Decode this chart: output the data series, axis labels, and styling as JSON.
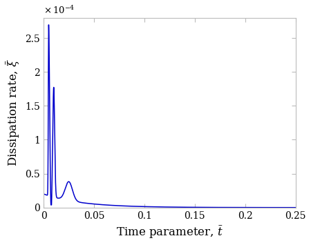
{
  "xlim": [
    0,
    0.25
  ],
  "ylim": [
    0,
    0.00028
  ],
  "xlabel": "Time parameter, $\\bar{t}$",
  "ylabel": "Dissipation rate, $\\bar{\\xi}$",
  "line_color": "#0000cc",
  "line_width": 1.1,
  "xlabel_fontsize": 12,
  "ylabel_fontsize": 12,
  "tick_fontsize": 10,
  "background_color": "#ffffff",
  "ytick_labels": [
    "0",
    "0.5",
    "1",
    "1.5",
    "2",
    "2.5"
  ],
  "xtick_labels": [
    "0",
    "0.05",
    "0.1",
    "0.15",
    "0.2",
    "0.25"
  ],
  "yticks": [
    0,
    5e-05,
    0.0001,
    0.00015,
    0.0002,
    0.00025
  ],
  "xticks": [
    0,
    0.05,
    0.1,
    0.15,
    0.2,
    0.25
  ]
}
